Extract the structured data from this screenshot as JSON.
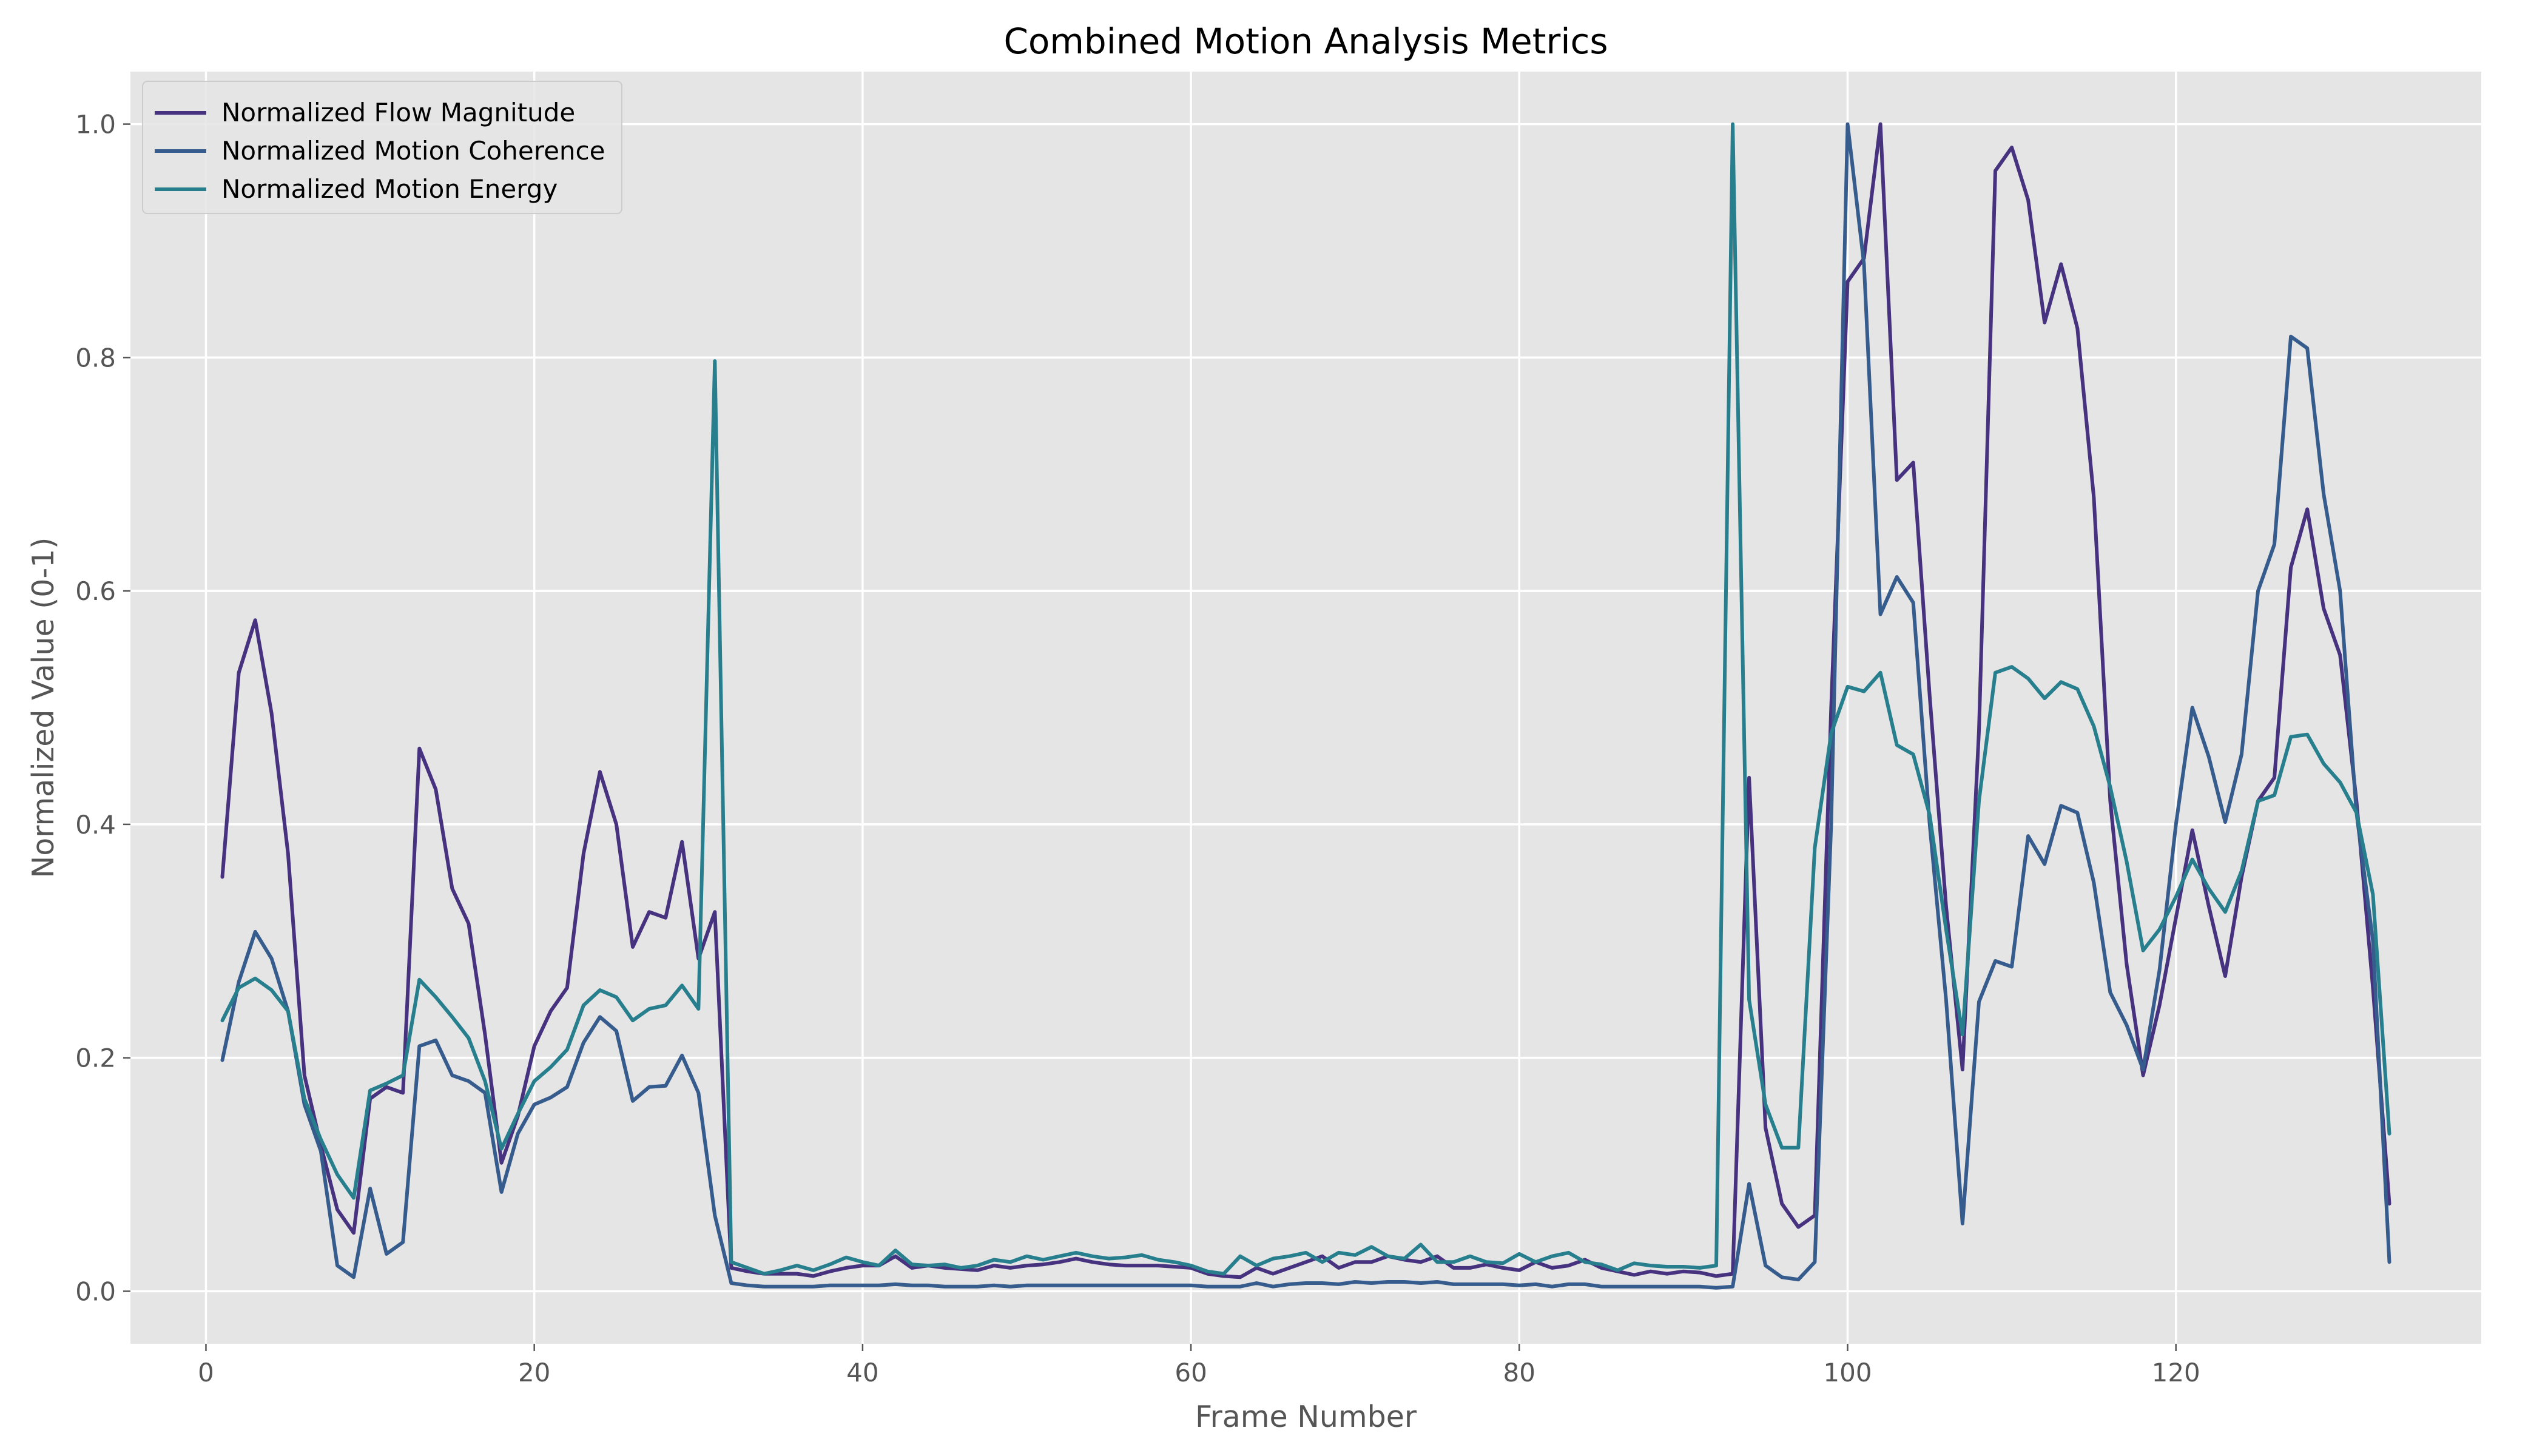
{
  "chart_data": {
    "type": "line",
    "title": "Combined Motion Analysis Metrics",
    "xlabel": "Frame Number",
    "ylabel": "Normalized Value (0-1)",
    "xlim": [
      -4.6,
      138.6
    ],
    "ylim": [
      -0.045,
      1.045
    ],
    "xticks": [
      0,
      20,
      40,
      60,
      80,
      100,
      120
    ],
    "xtick_labels": [
      "0",
      "20",
      "40",
      "60",
      "80",
      "100",
      "120"
    ],
    "yticks": [
      0.0,
      0.2,
      0.4,
      0.6,
      0.8,
      1.0
    ],
    "ytick_labels": [
      "0.0",
      "0.2",
      "0.4",
      "0.6",
      "0.8",
      "1.0"
    ],
    "grid": true,
    "legend_position": "top-left",
    "background": "#e5e5e5",
    "x": [
      1,
      2,
      3,
      4,
      5,
      6,
      7,
      8,
      9,
      10,
      11,
      12,
      13,
      14,
      15,
      16,
      17,
      18,
      19,
      20,
      21,
      22,
      23,
      24,
      25,
      26,
      27,
      28,
      29,
      30,
      31,
      32,
      33,
      34,
      35,
      36,
      37,
      38,
      39,
      40,
      41,
      42,
      43,
      44,
      45,
      46,
      47,
      48,
      49,
      50,
      51,
      52,
      53,
      54,
      55,
      56,
      57,
      58,
      59,
      60,
      61,
      62,
      63,
      64,
      65,
      66,
      67,
      68,
      69,
      70,
      71,
      72,
      73,
      74,
      75,
      76,
      77,
      78,
      79,
      80,
      81,
      82,
      83,
      84,
      85,
      86,
      87,
      88,
      89,
      90,
      91,
      92,
      93,
      94,
      95,
      96,
      97,
      98,
      99,
      100,
      101,
      102,
      103,
      104,
      105,
      106,
      107,
      108,
      109,
      110,
      111,
      112,
      113,
      114,
      115,
      116,
      117,
      118,
      119,
      120,
      121,
      122,
      123,
      124,
      125,
      126,
      127,
      128,
      129,
      130,
      131,
      132,
      133
    ],
    "series": [
      {
        "name": "Normalized Flow Magnitude",
        "color": "#46327e",
        "values": [
          0.355,
          0.53,
          0.575,
          0.495,
          0.375,
          0.185,
          0.125,
          0.07,
          0.05,
          0.165,
          0.175,
          0.17,
          0.465,
          0.43,
          0.345,
          0.315,
          0.22,
          0.11,
          0.15,
          0.21,
          0.24,
          0.26,
          0.375,
          0.445,
          0.4,
          0.295,
          0.325,
          0.32,
          0.385,
          0.285,
          0.325,
          0.02,
          0.017,
          0.015,
          0.015,
          0.015,
          0.013,
          0.017,
          0.02,
          0.022,
          0.022,
          0.03,
          0.02,
          0.022,
          0.02,
          0.019,
          0.018,
          0.022,
          0.02,
          0.022,
          0.023,
          0.025,
          0.028,
          0.025,
          0.023,
          0.022,
          0.022,
          0.022,
          0.021,
          0.02,
          0.015,
          0.013,
          0.012,
          0.02,
          0.015,
          0.02,
          0.025,
          0.03,
          0.02,
          0.025,
          0.025,
          0.03,
          0.027,
          0.025,
          0.03,
          0.02,
          0.02,
          0.023,
          0.02,
          0.018,
          0.025,
          0.02,
          0.022,
          0.027,
          0.02,
          0.017,
          0.014,
          0.017,
          0.015,
          0.017,
          0.016,
          0.013,
          0.015,
          0.44,
          0.14,
          0.075,
          0.055,
          0.065,
          0.5,
          0.865,
          0.885,
          1.0,
          0.695,
          0.71,
          0.51,
          0.33,
          0.19,
          0.48,
          0.96,
          0.98,
          0.935,
          0.83,
          0.88,
          0.825,
          0.68,
          0.42,
          0.28,
          0.185,
          0.245,
          0.32,
          0.395,
          0.33,
          0.27,
          0.355,
          0.42,
          0.44,
          0.62,
          0.67,
          0.585,
          0.545,
          0.42,
          0.26,
          0.075
        ]
      },
      {
        "name": "Normalized Motion Coherence",
        "color": "#365c8d",
        "values": [
          0.198,
          0.265,
          0.308,
          0.285,
          0.24,
          0.16,
          0.12,
          0.022,
          0.012,
          0.088,
          0.032,
          0.042,
          0.21,
          0.215,
          0.185,
          0.18,
          0.17,
          0.085,
          0.135,
          0.16,
          0.166,
          0.175,
          0.213,
          0.235,
          0.223,
          0.163,
          0.175,
          0.176,
          0.202,
          0.17,
          0.065,
          0.007,
          0.005,
          0.004,
          0.004,
          0.004,
          0.004,
          0.005,
          0.005,
          0.005,
          0.005,
          0.006,
          0.005,
          0.005,
          0.004,
          0.004,
          0.004,
          0.005,
          0.004,
          0.005,
          0.005,
          0.005,
          0.005,
          0.005,
          0.005,
          0.005,
          0.005,
          0.005,
          0.005,
          0.005,
          0.004,
          0.004,
          0.004,
          0.007,
          0.004,
          0.006,
          0.007,
          0.007,
          0.006,
          0.008,
          0.007,
          0.008,
          0.008,
          0.007,
          0.008,
          0.006,
          0.006,
          0.006,
          0.006,
          0.005,
          0.006,
          0.004,
          0.006,
          0.006,
          0.004,
          0.004,
          0.004,
          0.004,
          0.004,
          0.004,
          0.004,
          0.003,
          0.004,
          0.092,
          0.022,
          0.012,
          0.01,
          0.025,
          0.4,
          1.0,
          0.88,
          0.58,
          0.612,
          0.59,
          0.4,
          0.25,
          0.058,
          0.248,
          0.283,
          0.278,
          0.39,
          0.366,
          0.416,
          0.41,
          0.35,
          0.256,
          0.228,
          0.19,
          0.275,
          0.4,
          0.5,
          0.458,
          0.402,
          0.46,
          0.6,
          0.64,
          0.818,
          0.808,
          0.683,
          0.6,
          0.41,
          0.3,
          0.025
        ]
      },
      {
        "name": "Normalized Motion Energy",
        "color": "#277f8e",
        "values": [
          0.232,
          0.26,
          0.268,
          0.258,
          0.24,
          0.165,
          0.13,
          0.1,
          0.08,
          0.172,
          0.178,
          0.185,
          0.267,
          0.252,
          0.235,
          0.217,
          0.18,
          0.122,
          0.152,
          0.18,
          0.192,
          0.207,
          0.245,
          0.258,
          0.252,
          0.232,
          0.242,
          0.245,
          0.262,
          0.242,
          0.797,
          0.025,
          0.02,
          0.015,
          0.018,
          0.022,
          0.018,
          0.023,
          0.029,
          0.025,
          0.022,
          0.035,
          0.023,
          0.022,
          0.023,
          0.02,
          0.022,
          0.027,
          0.025,
          0.03,
          0.027,
          0.03,
          0.033,
          0.03,
          0.028,
          0.029,
          0.031,
          0.027,
          0.025,
          0.022,
          0.017,
          0.015,
          0.03,
          0.022,
          0.028,
          0.03,
          0.033,
          0.025,
          0.033,
          0.031,
          0.038,
          0.03,
          0.028,
          0.04,
          0.025,
          0.025,
          0.03,
          0.025,
          0.024,
          0.032,
          0.025,
          0.03,
          0.033,
          0.025,
          0.023,
          0.018,
          0.024,
          0.022,
          0.021,
          0.021,
          0.02,
          0.022,
          1.0,
          0.25,
          0.16,
          0.123,
          0.123,
          0.38,
          0.478,
          0.518,
          0.514,
          0.53,
          0.468,
          0.46,
          0.408,
          0.31,
          0.22,
          0.42,
          0.53,
          0.535,
          0.525,
          0.508,
          0.522,
          0.516,
          0.484,
          0.432,
          0.368,
          0.292,
          0.31,
          0.338,
          0.37,
          0.345,
          0.325,
          0.36,
          0.42,
          0.425,
          0.475,
          0.477,
          0.452,
          0.436,
          0.41,
          0.34,
          0.135
        ]
      }
    ]
  }
}
